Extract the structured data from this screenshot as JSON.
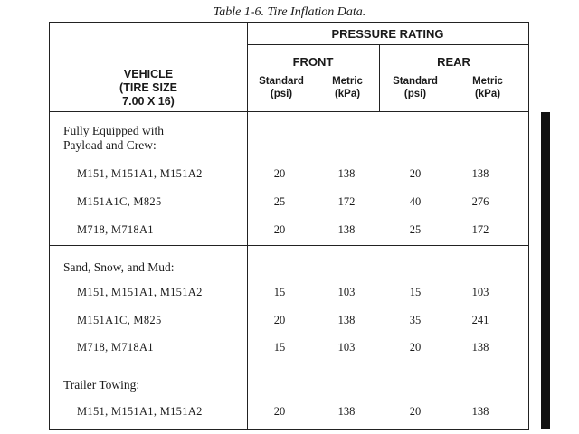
{
  "caption": "Table 1-6. Tire Inflation Data.",
  "header": {
    "vehicle": [
      "VEHICLE",
      "(TIRE SIZE",
      "7.00 X 16)"
    ],
    "pressure_rating": "PRESSURE RATING",
    "front": "FRONT",
    "rear": "REAR",
    "standard": [
      "Standard",
      "(psi)"
    ],
    "metric": [
      "Metric",
      "(kPa)"
    ]
  },
  "sections": [
    {
      "title": [
        "Fully Equipped with",
        "Payload and Crew:"
      ],
      "rows": [
        {
          "vehicle": "M151, M151A1, M151A2",
          "front_std": "20",
          "front_metric": "138",
          "rear_std": "20",
          "rear_metric": "138"
        },
        {
          "vehicle": "M151A1C, M825",
          "front_std": "25",
          "front_metric": "172",
          "rear_std": "40",
          "rear_metric": "276"
        },
        {
          "vehicle": "M718, M718A1",
          "front_std": "20",
          "front_metric": "138",
          "rear_std": "25",
          "rear_metric": "172"
        }
      ]
    },
    {
      "title": [
        "Sand, Snow, and Mud:"
      ],
      "rows": [
        {
          "vehicle": "M151, M151A1, M151A2",
          "front_std": "15",
          "front_metric": "103",
          "rear_std": "15",
          "rear_metric": "103"
        },
        {
          "vehicle": "M151A1C, M825",
          "front_std": "20",
          "front_metric": "138",
          "rear_std": "35",
          "rear_metric": "241"
        },
        {
          "vehicle": "M718, M718A1",
          "front_std": "15",
          "front_metric": "103",
          "rear_std": "20",
          "rear_metric": "138"
        }
      ]
    },
    {
      "title": [
        "Trailer Towing:"
      ],
      "rows": [
        {
          "vehicle": "M151, M151A1, M151A2",
          "front_std": "20",
          "front_metric": "138",
          "rear_std": "20",
          "rear_metric": "138"
        }
      ]
    }
  ]
}
